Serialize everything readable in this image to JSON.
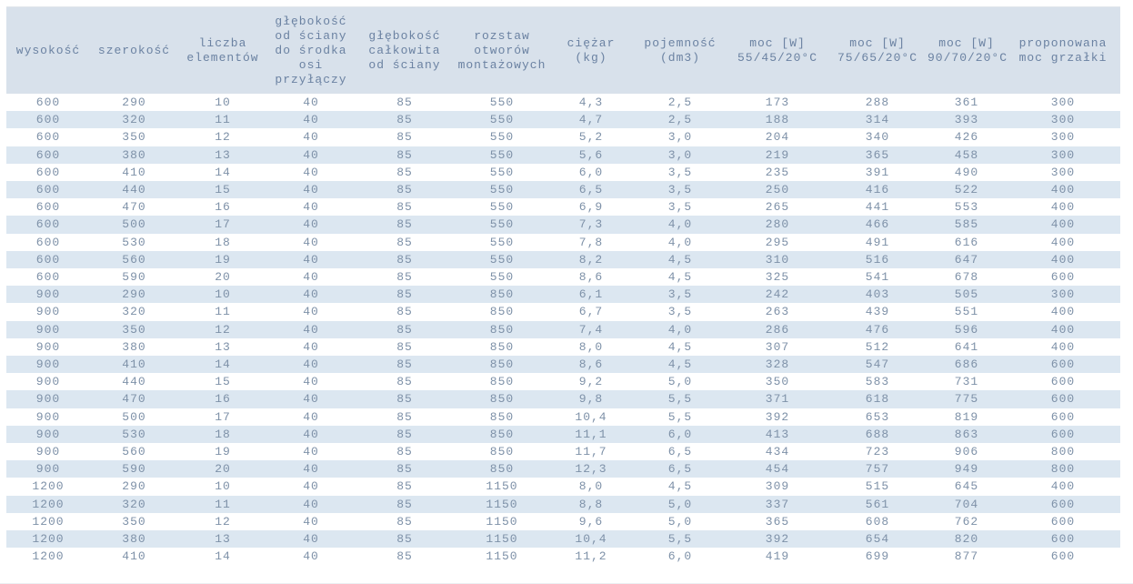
{
  "colors": {
    "header_bg": "#d8e1eb",
    "even_row_bg": "#dce7f1",
    "odd_row_bg": "#ffffff",
    "header_text": "#6b82a2",
    "cell_text": "#7e91a8"
  },
  "chart_data": {
    "type": "table",
    "layout": {
      "striped": true,
      "header_position": "top",
      "text_align": "center"
    },
    "columns": [
      {
        "key": "wysokosc",
        "label": "wysokość",
        "label_lines": [
          "wysokość"
        ]
      },
      {
        "key": "szerokosc",
        "label": "szerokość",
        "label_lines": [
          "szerokość"
        ]
      },
      {
        "key": "liczba-elementow",
        "label": "liczba elementów",
        "label_lines": [
          "liczba",
          "elementów"
        ]
      },
      {
        "key": "glebokosc-osi-przylaczy",
        "label": "głębokość od ściany do środka osi przyłączy",
        "label_lines": [
          "głębokość",
          "od ściany",
          "do środka",
          "osi",
          "przyłączy"
        ]
      },
      {
        "key": "glebokosc-calkowita",
        "label": "głębokość całkowita od ściany",
        "label_lines": [
          "głębokość",
          "całkowita",
          "od ściany"
        ]
      },
      {
        "key": "rozstaw-otworow",
        "label": "rozstaw otworów montażowych",
        "label_lines": [
          "rozstaw",
          "otworów",
          "montażowych"
        ]
      },
      {
        "key": "ciezar-kg",
        "label": "ciężar (kg)",
        "label_lines": [
          "ciężar",
          "(kg)"
        ]
      },
      {
        "key": "pojemnosc-dm3",
        "label": "pojemność (dm3)",
        "label_lines": [
          "pojemność",
          "(dm3)"
        ]
      },
      {
        "key": "moc-55-45-20",
        "label": "moc [W] 55/45/20°C",
        "label_lines": [
          "moc [W]",
          "55/45/20°C"
        ]
      },
      {
        "key": "moc-75-65-20",
        "label": "moc [W] 75/65/20°C",
        "label_lines": [
          "moc [W]",
          "75/65/20°C"
        ]
      },
      {
        "key": "moc-90-70-20",
        "label": "moc [W] 90/70/20°C",
        "label_lines": [
          "moc [W]",
          "90/70/20°C"
        ]
      },
      {
        "key": "proponowana-moc-grzalki",
        "label": "proponowana moc grzałki",
        "label_lines": [
          "proponowana",
          "moc grzałki"
        ]
      }
    ],
    "rows": [
      [
        "600",
        "290",
        "10",
        "40",
        "85",
        "550",
        "4,3",
        "2,5",
        "173",
        "288",
        "361",
        "300"
      ],
      [
        "600",
        "320",
        "11",
        "40",
        "85",
        "550",
        "4,7",
        "2,5",
        "188",
        "314",
        "393",
        "300"
      ],
      [
        "600",
        "350",
        "12",
        "40",
        "85",
        "550",
        "5,2",
        "3,0",
        "204",
        "340",
        "426",
        "300"
      ],
      [
        "600",
        "380",
        "13",
        "40",
        "85",
        "550",
        "5,6",
        "3,0",
        "219",
        "365",
        "458",
        "300"
      ],
      [
        "600",
        "410",
        "14",
        "40",
        "85",
        "550",
        "6,0",
        "3,5",
        "235",
        "391",
        "490",
        "300"
      ],
      [
        "600",
        "440",
        "15",
        "40",
        "85",
        "550",
        "6,5",
        "3,5",
        "250",
        "416",
        "522",
        "400"
      ],
      [
        "600",
        "470",
        "16",
        "40",
        "85",
        "550",
        "6,9",
        "3,5",
        "265",
        "441",
        "553",
        "400"
      ],
      [
        "600",
        "500",
        "17",
        "40",
        "85",
        "550",
        "7,3",
        "4,0",
        "280",
        "466",
        "585",
        "400"
      ],
      [
        "600",
        "530",
        "18",
        "40",
        "85",
        "550",
        "7,8",
        "4,0",
        "295",
        "491",
        "616",
        "400"
      ],
      [
        "600",
        "560",
        "19",
        "40",
        "85",
        "550",
        "8,2",
        "4,5",
        "310",
        "516",
        "647",
        "400"
      ],
      [
        "600",
        "590",
        "20",
        "40",
        "85",
        "550",
        "8,6",
        "4,5",
        "325",
        "541",
        "678",
        "600"
      ],
      [
        "900",
        "290",
        "10",
        "40",
        "85",
        "850",
        "6,1",
        "3,5",
        "242",
        "403",
        "505",
        "300"
      ],
      [
        "900",
        "320",
        "11",
        "40",
        "85",
        "850",
        "6,7",
        "3,5",
        "263",
        "439",
        "551",
        "400"
      ],
      [
        "900",
        "350",
        "12",
        "40",
        "85",
        "850",
        "7,4",
        "4,0",
        "286",
        "476",
        "596",
        "400"
      ],
      [
        "900",
        "380",
        "13",
        "40",
        "85",
        "850",
        "8,0",
        "4,5",
        "307",
        "512",
        "641",
        "400"
      ],
      [
        "900",
        "410",
        "14",
        "40",
        "85",
        "850",
        "8,6",
        "4,5",
        "328",
        "547",
        "686",
        "600"
      ],
      [
        "900",
        "440",
        "15",
        "40",
        "85",
        "850",
        "9,2",
        "5,0",
        "350",
        "583",
        "731",
        "600"
      ],
      [
        "900",
        "470",
        "16",
        "40",
        "85",
        "850",
        "9,8",
        "5,5",
        "371",
        "618",
        "775",
        "600"
      ],
      [
        "900",
        "500",
        "17",
        "40",
        "85",
        "850",
        "10,4",
        "5,5",
        "392",
        "653",
        "819",
        "600"
      ],
      [
        "900",
        "530",
        "18",
        "40",
        "85",
        "850",
        "11,1",
        "6,0",
        "413",
        "688",
        "863",
        "600"
      ],
      [
        "900",
        "560",
        "19",
        "40",
        "85",
        "850",
        "11,7",
        "6,5",
        "434",
        "723",
        "906",
        "800"
      ],
      [
        "900",
        "590",
        "20",
        "40",
        "85",
        "850",
        "12,3",
        "6,5",
        "454",
        "757",
        "949",
        "800"
      ],
      [
        "1200",
        "290",
        "10",
        "40",
        "85",
        "1150",
        "8,0",
        "4,5",
        "309",
        "515",
        "645",
        "400"
      ],
      [
        "1200",
        "320",
        "11",
        "40",
        "85",
        "1150",
        "8,8",
        "5,0",
        "337",
        "561",
        "704",
        "600"
      ],
      [
        "1200",
        "350",
        "12",
        "40",
        "85",
        "1150",
        "9,6",
        "5,0",
        "365",
        "608",
        "762",
        "600"
      ],
      [
        "1200",
        "380",
        "13",
        "40",
        "85",
        "1150",
        "10,4",
        "5,5",
        "392",
        "654",
        "820",
        "600"
      ],
      [
        "1200",
        "410",
        "14",
        "40",
        "85",
        "1150",
        "11,2",
        "6,0",
        "419",
        "699",
        "877",
        "600"
      ]
    ]
  }
}
